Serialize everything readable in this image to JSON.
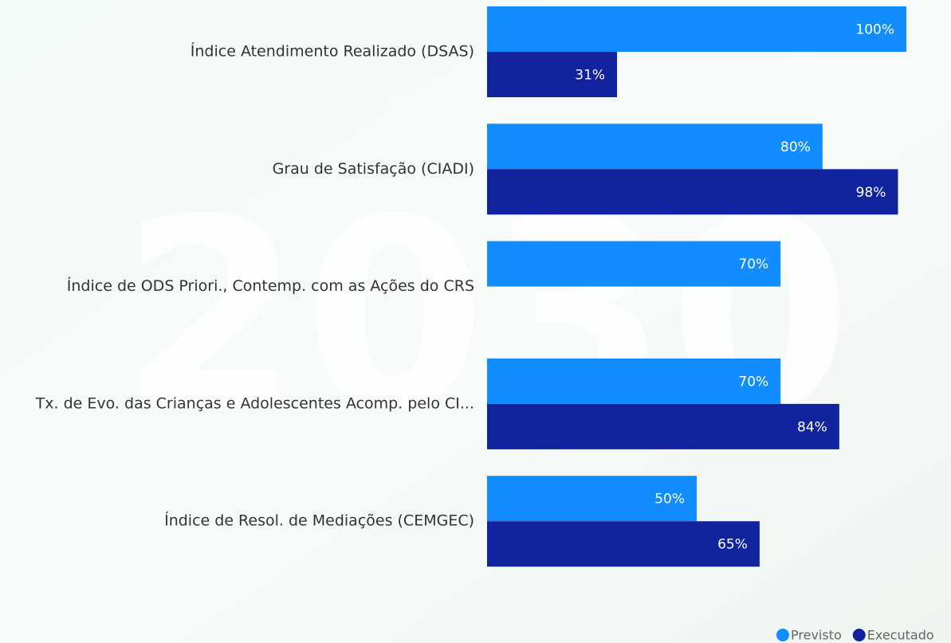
{
  "chart_data": {
    "type": "bar",
    "orientation": "horizontal",
    "categories": [
      "Índice Atendimento Realizado (DSAS)",
      "Grau de Satisfação (CIADI)",
      "Índice de ODS Priori., Contemp. com as Ações do CRS",
      "Tx. de Evo. das Crianças e Adolescentes Acomp. pelo CI...",
      "Índice de Resol. de Mediações (CEMGEC)"
    ],
    "series": [
      {
        "name": "Previsto",
        "color": "#118DFF",
        "values": [
          100,
          80,
          70,
          70,
          50
        ],
        "value_labels": [
          "100%",
          "80%",
          "70%",
          "70%",
          "50%"
        ]
      },
      {
        "name": "Executado",
        "color": "#12239E",
        "values": [
          31,
          98,
          null,
          84,
          65
        ],
        "value_labels": [
          "31%",
          "98%",
          null,
          "84%",
          "65%"
        ]
      }
    ],
    "xlim": [
      0,
      100
    ]
  }
}
